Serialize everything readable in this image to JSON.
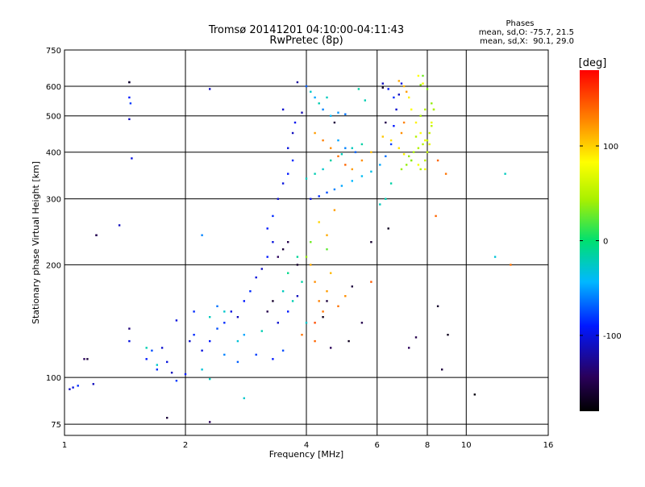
{
  "chart_data": {
    "type": "scatter",
    "title": "Tromsø 20141201 04:10:00-04:11:43",
    "subtitle": "RwPretec (8p)",
    "xlabel": "Frequency [MHz]",
    "ylabel": "Stationary phase Virtual Height [km]",
    "x_scale": "log",
    "y_scale": "log",
    "xlim": [
      1,
      16
    ],
    "ylim": [
      70,
      750
    ],
    "x_ticks": [
      1,
      2,
      4,
      6,
      8,
      10,
      16
    ],
    "y_ticks": [
      75,
      100,
      200,
      300,
      400,
      500,
      600,
      750
    ],
    "grid": true,
    "phase_stats": {
      "title": "Phases",
      "o_line": "mean, sd,O: -75.7, 21.5",
      "x_line": "mean, sd,X:  90.1, 29.0"
    },
    "colorbar": {
      "label": "[deg]",
      "range": [
        -180,
        180
      ],
      "tick_values": [
        100,
        0,
        -100
      ],
      "tick_labels": [
        "100",
        "0",
        "-100"
      ]
    },
    "series": [
      {
        "points": [
          [
            1.03,
            93,
            -120
          ],
          [
            1.05,
            94,
            -110
          ],
          [
            1.08,
            95,
            -95
          ],
          [
            1.12,
            112,
            -150
          ],
          [
            1.18,
            96,
            -120
          ],
          [
            1.2,
            240,
            -140
          ],
          [
            1.45,
            615,
            -130
          ],
          [
            1.45,
            560,
            -100
          ],
          [
            1.46,
            540,
            -90
          ],
          [
            1.45,
            490,
            -120
          ],
          [
            1.47,
            385,
            -110
          ],
          [
            1.37,
            255,
            -120
          ],
          [
            1.45,
            135,
            -140
          ],
          [
            1.45,
            125,
            -110
          ],
          [
            1.6,
            112,
            -100
          ],
          [
            1.65,
            118,
            -85
          ],
          [
            1.7,
            105,
            -95
          ],
          [
            1.75,
            120,
            -115
          ],
          [
            1.8,
            110,
            -110
          ],
          [
            1.85,
            103,
            -120
          ],
          [
            1.9,
            98,
            -90
          ],
          [
            2.0,
            102,
            -100
          ],
          [
            2.05,
            125,
            -115
          ],
          [
            2.1,
            130,
            -95
          ],
          [
            2.2,
            118,
            -110
          ],
          [
            2.3,
            125,
            -100
          ],
          [
            2.4,
            135,
            -85
          ],
          [
            2.5,
            140,
            -95
          ],
          [
            2.6,
            150,
            -110
          ],
          [
            2.7,
            145,
            -120
          ],
          [
            2.8,
            160,
            -100
          ],
          [
            2.9,
            170,
            -95
          ],
          [
            3.0,
            185,
            -110
          ],
          [
            3.1,
            195,
            -120
          ],
          [
            3.2,
            210,
            -100
          ],
          [
            3.3,
            230,
            -110
          ],
          [
            3.2,
            250,
            -100
          ],
          [
            3.3,
            270,
            -95
          ],
          [
            3.4,
            300,
            -115
          ],
          [
            3.5,
            330,
            -110
          ],
          [
            3.6,
            350,
            -100
          ],
          [
            3.7,
            380,
            -95
          ],
          [
            3.6,
            410,
            -110
          ],
          [
            3.7,
            450,
            -120
          ],
          [
            3.75,
            480,
            -105
          ],
          [
            3.5,
            520,
            -115
          ],
          [
            3.9,
            510,
            -125
          ],
          [
            2.2,
            240,
            -70
          ],
          [
            2.3,
            590,
            -120
          ],
          [
            3.8,
            615,
            -130
          ],
          [
            4.0,
            600,
            -80
          ],
          [
            4.2,
            560,
            -60
          ],
          [
            4.4,
            520,
            -70
          ],
          [
            4.6,
            500,
            -55
          ],
          [
            4.8,
            510,
            -65
          ],
          [
            5.0,
            505,
            -75
          ],
          [
            4.1,
            300,
            -110
          ],
          [
            4.3,
            305,
            -95
          ],
          [
            4.5,
            312,
            -85
          ],
          [
            4.7,
            318,
            -70
          ],
          [
            4.9,
            325,
            -60
          ],
          [
            5.2,
            335,
            -55
          ],
          [
            5.5,
            345,
            -50
          ],
          [
            5.8,
            355,
            -45
          ],
          [
            6.1,
            370,
            -60
          ],
          [
            6.3,
            390,
            -75
          ],
          [
            6.5,
            420,
            -90
          ],
          [
            6.6,
            470,
            -100
          ],
          [
            6.7,
            520,
            -115
          ],
          [
            6.8,
            570,
            -120
          ],
          [
            6.9,
            610,
            -110
          ],
          [
            4.8,
            430,
            -60
          ],
          [
            5.0,
            410,
            -70
          ],
          [
            5.3,
            400,
            -80
          ],
          [
            6.2,
            610,
            -120
          ],
          [
            6.4,
            590,
            -105
          ],
          [
            6.6,
            560,
            -95
          ],
          [
            2.5,
            115,
            -70
          ],
          [
            2.7,
            110,
            -80
          ],
          [
            3.0,
            115,
            -90
          ],
          [
            3.3,
            112,
            -100
          ],
          [
            3.5,
            118,
            -85
          ],
          [
            1.9,
            142,
            -110
          ],
          [
            2.1,
            150,
            -95
          ],
          [
            2.4,
            155,
            -75
          ],
          [
            2.8,
            130,
            -60
          ],
          [
            3.4,
            140,
            -115
          ],
          [
            3.6,
            150,
            -100
          ],
          [
            3.8,
            165,
            -120
          ]
        ]
      },
      {
        "points": [
          [
            4.2,
            450,
            120
          ],
          [
            4.4,
            430,
            130
          ],
          [
            4.6,
            410,
            125
          ],
          [
            4.8,
            390,
            135
          ],
          [
            5.0,
            370,
            140
          ],
          [
            5.2,
            360,
            120
          ],
          [
            5.5,
            380,
            125
          ],
          [
            5.8,
            400,
            110
          ],
          [
            4.1,
            200,
            115
          ],
          [
            4.2,
            180,
            125
          ],
          [
            4.3,
            160,
            130
          ],
          [
            4.4,
            150,
            135
          ],
          [
            4.5,
            170,
            120
          ],
          [
            4.6,
            190,
            110
          ],
          [
            4.0,
            210,
            40
          ],
          [
            4.1,
            230,
            30
          ],
          [
            4.3,
            260,
            100
          ],
          [
            4.5,
            240,
            115
          ],
          [
            4.7,
            280,
            120
          ],
          [
            4.8,
            155,
            135
          ],
          [
            5.0,
            165,
            125
          ],
          [
            4.2,
            140,
            150
          ],
          [
            3.9,
            130,
            135
          ],
          [
            6.2,
            440,
            105
          ],
          [
            6.5,
            430,
            95
          ],
          [
            6.8,
            410,
            95
          ],
          [
            7.0,
            395,
            90
          ],
          [
            7.3,
            380,
            85
          ],
          [
            7.6,
            370,
            80
          ],
          [
            7.9,
            360,
            80
          ],
          [
            7.2,
            560,
            90
          ],
          [
            7.3,
            520,
            85
          ],
          [
            7.5,
            480,
            90
          ],
          [
            7.7,
            450,
            85
          ],
          [
            7.9,
            430,
            80
          ],
          [
            8.1,
            420,
            75
          ],
          [
            8.2,
            480,
            75
          ],
          [
            8.3,
            520,
            70
          ],
          [
            7.8,
            610,
            80
          ],
          [
            7.6,
            640,
            85
          ],
          [
            6.8,
            620,
            115
          ],
          [
            7.0,
            600,
            110
          ],
          [
            7.1,
            580,
            120
          ],
          [
            7.0,
            480,
            130
          ],
          [
            6.9,
            450,
            125
          ],
          [
            8.5,
            380,
            140
          ],
          [
            8.9,
            350,
            135
          ],
          [
            8.4,
            270,
            140
          ],
          [
            12.9,
            200,
            135
          ],
          [
            5.8,
            180,
            145
          ],
          [
            4.5,
            220,
            25
          ],
          [
            4.2,
            125,
            140
          ]
        ]
      },
      {
        "points": [
          [
            3.5,
            170,
            -30
          ],
          [
            3.7,
            160,
            -25
          ],
          [
            3.9,
            180,
            -20
          ],
          [
            4.0,
            140,
            -35
          ],
          [
            3.6,
            190,
            -10
          ],
          [
            3.8,
            210,
            -15
          ],
          [
            4.0,
            340,
            -30
          ],
          [
            4.2,
            350,
            -25
          ],
          [
            4.4,
            360,
            -35
          ],
          [
            4.6,
            380,
            -20
          ],
          [
            4.9,
            395,
            -28
          ],
          [
            5.2,
            410,
            -30
          ],
          [
            5.5,
            420,
            -20
          ],
          [
            4.3,
            540,
            -25
          ],
          [
            4.5,
            560,
            -30
          ],
          [
            4.1,
            580,
            -35
          ],
          [
            5.4,
            590,
            -20
          ],
          [
            5.6,
            550,
            -25
          ],
          [
            2.3,
            145,
            -30
          ],
          [
            2.5,
            150,
            -35
          ],
          [
            2.7,
            125,
            -40
          ],
          [
            3.1,
            133,
            -25
          ],
          [
            1.6,
            120,
            -25
          ],
          [
            1.7,
            108,
            -35
          ],
          [
            2.2,
            105,
            -40
          ],
          [
            2.3,
            99,
            -30
          ],
          [
            12.5,
            350,
            -30
          ],
          [
            11.8,
            210,
            -40
          ],
          [
            2.8,
            88,
            -35
          ],
          [
            6.3,
            300,
            -25
          ],
          [
            6.5,
            330,
            -20
          ],
          [
            6.1,
            290,
            -30
          ]
        ]
      },
      {
        "points": [
          [
            7.2,
            390,
            40
          ],
          [
            7.4,
            400,
            45
          ],
          [
            7.6,
            410,
            50
          ],
          [
            7.8,
            420,
            50
          ],
          [
            8.0,
            430,
            55
          ],
          [
            8.1,
            450,
            60
          ],
          [
            8.2,
            470,
            55
          ],
          [
            7.9,
            520,
            50
          ],
          [
            7.7,
            500,
            45
          ],
          [
            7.3,
            380,
            35
          ],
          [
            7.1,
            370,
            40
          ],
          [
            6.9,
            360,
            42
          ],
          [
            7.5,
            440,
            52
          ],
          [
            7.7,
            360,
            48
          ],
          [
            8.0,
            400,
            58
          ],
          [
            7.9,
            380,
            55
          ],
          [
            8.3,
            520,
            45
          ],
          [
            8.2,
            540,
            40
          ],
          [
            8.0,
            590,
            35
          ],
          [
            7.8,
            640,
            30
          ],
          [
            7.7,
            605,
            38
          ]
        ]
      },
      {
        "points": [
          [
            3.4,
            210,
            -150
          ],
          [
            3.5,
            220,
            -160
          ],
          [
            3.6,
            230,
            -155
          ],
          [
            3.8,
            200,
            -165
          ],
          [
            4.4,
            145,
            -170
          ],
          [
            4.5,
            160,
            -160
          ],
          [
            3.2,
            150,
            -155
          ],
          [
            3.3,
            160,
            -165
          ],
          [
            5.2,
            175,
            -160
          ],
          [
            5.5,
            140,
            -155
          ],
          [
            6.4,
            250,
            -170
          ],
          [
            6.2,
            595,
            -165
          ],
          [
            7.2,
            120,
            -150
          ],
          [
            7.5,
            128,
            -155
          ],
          [
            8.5,
            155,
            -165
          ],
          [
            9.0,
            130,
            -170
          ],
          [
            10.5,
            90,
            -175
          ],
          [
            8.7,
            105,
            -160
          ],
          [
            1.14,
            112,
            -160
          ],
          [
            1.2,
            240,
            -155
          ],
          [
            1.45,
            615,
            -170
          ],
          [
            2.3,
            76,
            -150
          ],
          [
            1.8,
            78,
            -160
          ],
          [
            4.7,
            480,
            -160
          ],
          [
            5.1,
            125,
            -170
          ],
          [
            6.3,
            480,
            -155
          ],
          [
            5.8,
            230,
            -165
          ],
          [
            4.6,
            120,
            -150
          ]
        ]
      }
    ]
  }
}
